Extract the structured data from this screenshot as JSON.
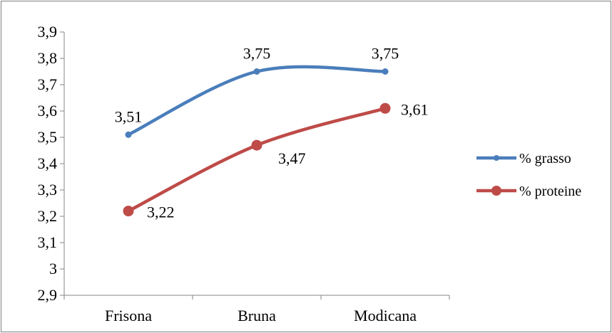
{
  "chart_data": {
    "type": "line",
    "categories": [
      "Frisona",
      "Bruna",
      "Modicana"
    ],
    "series": [
      {
        "name": "% grasso",
        "values": [
          3.51,
          3.75,
          3.75
        ],
        "labels": [
          "3,51",
          "3,75",
          "3,75"
        ],
        "color": "#4a7ebb",
        "marker": "small-circle"
      },
      {
        "name": "% proteine",
        "values": [
          3.22,
          3.47,
          3.61
        ],
        "labels": [
          "3,22",
          "3,47",
          "3,61"
        ],
        "color": "#be4b48",
        "marker": "large-circle"
      }
    ],
    "ylim": [
      2.9,
      3.9
    ],
    "yticks": [
      2.9,
      3.0,
      3.1,
      3.2,
      3.3,
      3.4,
      3.5,
      3.6,
      3.7,
      3.8,
      3.9
    ],
    "ytick_labels": [
      "2,9",
      "3",
      "3,1",
      "3,2",
      "3,3",
      "3,4",
      "3,5",
      "3,6",
      "3,7",
      "3,8",
      "3,9"
    ],
    "smooth": true,
    "grid": false,
    "legend_position": "right"
  }
}
